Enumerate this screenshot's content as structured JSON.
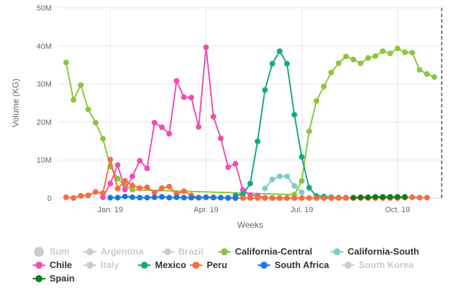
{
  "chart_data": {
    "type": "line",
    "xlabel": "Weeks",
    "ylabel": "Volume (KG)",
    "ylim": [
      0,
      50
    ],
    "yticks": [
      "0",
      "10M",
      "20M",
      "30M",
      "40M",
      "50M"
    ],
    "y_tick_values": [
      0,
      10,
      20,
      30,
      40,
      50
    ],
    "xlim": [
      -1,
      51
    ],
    "x_tick_labels": [
      "Jan. 19",
      "Apr. 19",
      "Jul. 19",
      "Oct. 19"
    ],
    "x_tick_positions": [
      6,
      19,
      32,
      45
    ],
    "grid": true,
    "legend_position": "bottom",
    "series": [
      {
        "name": "Sum",
        "color": "#bbbbbb",
        "visible": false,
        "x": [],
        "y": []
      },
      {
        "name": "Argentina",
        "color": "#cccccc",
        "visible": false,
        "x": [],
        "y": []
      },
      {
        "name": "Brazil",
        "color": "#cccccc",
        "visible": false,
        "x": [],
        "y": []
      },
      {
        "name": "California-Central",
        "color": "#8cc63f",
        "visible": true,
        "x": [
          0,
          1,
          2,
          3,
          4,
          5,
          6,
          7,
          8,
          9,
          31,
          32,
          33,
          34,
          35,
          36,
          37,
          38,
          39,
          40,
          41,
          42,
          43,
          44,
          45,
          46,
          47,
          48,
          49,
          50
        ],
        "y": [
          35.6,
          25.8,
          29.7,
          23.3,
          19.8,
          15.6,
          8.3,
          5.1,
          3.3,
          2.2,
          0.9,
          4.5,
          17.5,
          25.5,
          29.3,
          33.0,
          35.4,
          37.2,
          36.4,
          35.4,
          36.8,
          37.3,
          38.6,
          38.0,
          39.3,
          38.3,
          38.2,
          33.7,
          32.6,
          31.8
        ]
      },
      {
        "name": "California-South",
        "color": "#7fcdc7",
        "visible": true,
        "x": [
          27,
          28,
          29,
          30,
          31,
          32
        ],
        "y": [
          2.5,
          4.9,
          5.7,
          5.7,
          3.2,
          1.5
        ]
      },
      {
        "name": "Chile",
        "color": "#ee4fb3",
        "visible": true,
        "x": [
          5,
          6,
          7,
          8,
          9,
          10,
          11,
          12,
          13,
          14,
          15,
          16,
          17,
          18,
          19,
          20,
          21,
          22,
          23,
          24,
          25,
          26,
          27,
          28,
          29,
          30,
          31
        ],
        "y": [
          0.2,
          3.8,
          8.7,
          2.2,
          5.7,
          9.8,
          7.8,
          19.8,
          18.6,
          16.9,
          30.8,
          26.5,
          26.4,
          18.7,
          39.6,
          21.4,
          15.7,
          8.1,
          9.0,
          2.1,
          0.8,
          0.6,
          0.1,
          0.0,
          0.0,
          0.0,
          0.0
        ]
      },
      {
        "name": "Italy",
        "color": "#cccccc",
        "visible": false,
        "x": [],
        "y": []
      },
      {
        "name": "Mexico",
        "color": "#14a986",
        "visible": true,
        "x": [
          23,
          24,
          25,
          26,
          27,
          28,
          29,
          30,
          31,
          32,
          33,
          34,
          35,
          36,
          37,
          38
        ],
        "y": [
          0.7,
          0.9,
          3.8,
          14.9,
          28.4,
          35.3,
          38.6,
          35.3,
          21.9,
          10.8,
          2.7,
          0.5,
          0.4,
          0.2,
          0.1,
          0.1
        ]
      },
      {
        "name": "Peru",
        "color": "#f86c3e",
        "visible": true,
        "x": [
          0,
          1,
          2,
          3,
          4,
          5,
          6,
          7,
          8,
          9,
          10,
          11,
          12,
          13,
          14,
          15,
          16,
          17,
          18,
          19,
          20,
          21,
          22,
          23,
          24,
          25,
          26,
          27,
          28,
          29,
          30,
          31,
          32,
          33,
          34,
          35,
          36,
          37,
          38,
          39,
          40,
          41,
          42,
          43,
          44,
          45,
          46,
          47,
          48,
          49
        ],
        "y": [
          0.2,
          0.0,
          0.6,
          0.7,
          1.6,
          1.3,
          10.1,
          2.5,
          4.5,
          3.3,
          2.6,
          2.8,
          1.4,
          2.6,
          3.0,
          1.1,
          1.8,
          0.7,
          0.1,
          0.2,
          0.2,
          0.1,
          0.1,
          0.0,
          0.0,
          0.0,
          0.0,
          0.0,
          0.0,
          0.0,
          0.0,
          0.0,
          0.0,
          0.0,
          0.0,
          0.0,
          0.0,
          0.0,
          0.0,
          0.0,
          0.0,
          0.0,
          0.0,
          0.0,
          0.0,
          0.0,
          0.1,
          0.2,
          0.1,
          0.1
        ]
      },
      {
        "name": "South Africa",
        "color": "#1b76e6",
        "visible": true,
        "x": [
          6,
          7,
          8,
          9,
          10,
          11,
          12,
          13,
          14,
          15,
          16,
          17,
          18,
          19,
          20,
          21,
          22,
          23
        ],
        "y": [
          0.1,
          0.1,
          0.4,
          0.2,
          0.1,
          0.1,
          0.2,
          0.3,
          0.1,
          0.2,
          0.1,
          0.1,
          0.1,
          0.2,
          0.1,
          0.1,
          0.0,
          0.0
        ]
      },
      {
        "name": "South Korea",
        "color": "#cccccc",
        "visible": false,
        "x": [],
        "y": []
      },
      {
        "name": "Spain",
        "color": "#127a1a",
        "visible": true,
        "x": [
          39,
          40,
          41,
          42,
          43,
          44,
          45,
          46
        ],
        "y": [
          0.1,
          0.2,
          0.2,
          0.3,
          0.3,
          0.3,
          0.3,
          0.3
        ]
      }
    ]
  }
}
